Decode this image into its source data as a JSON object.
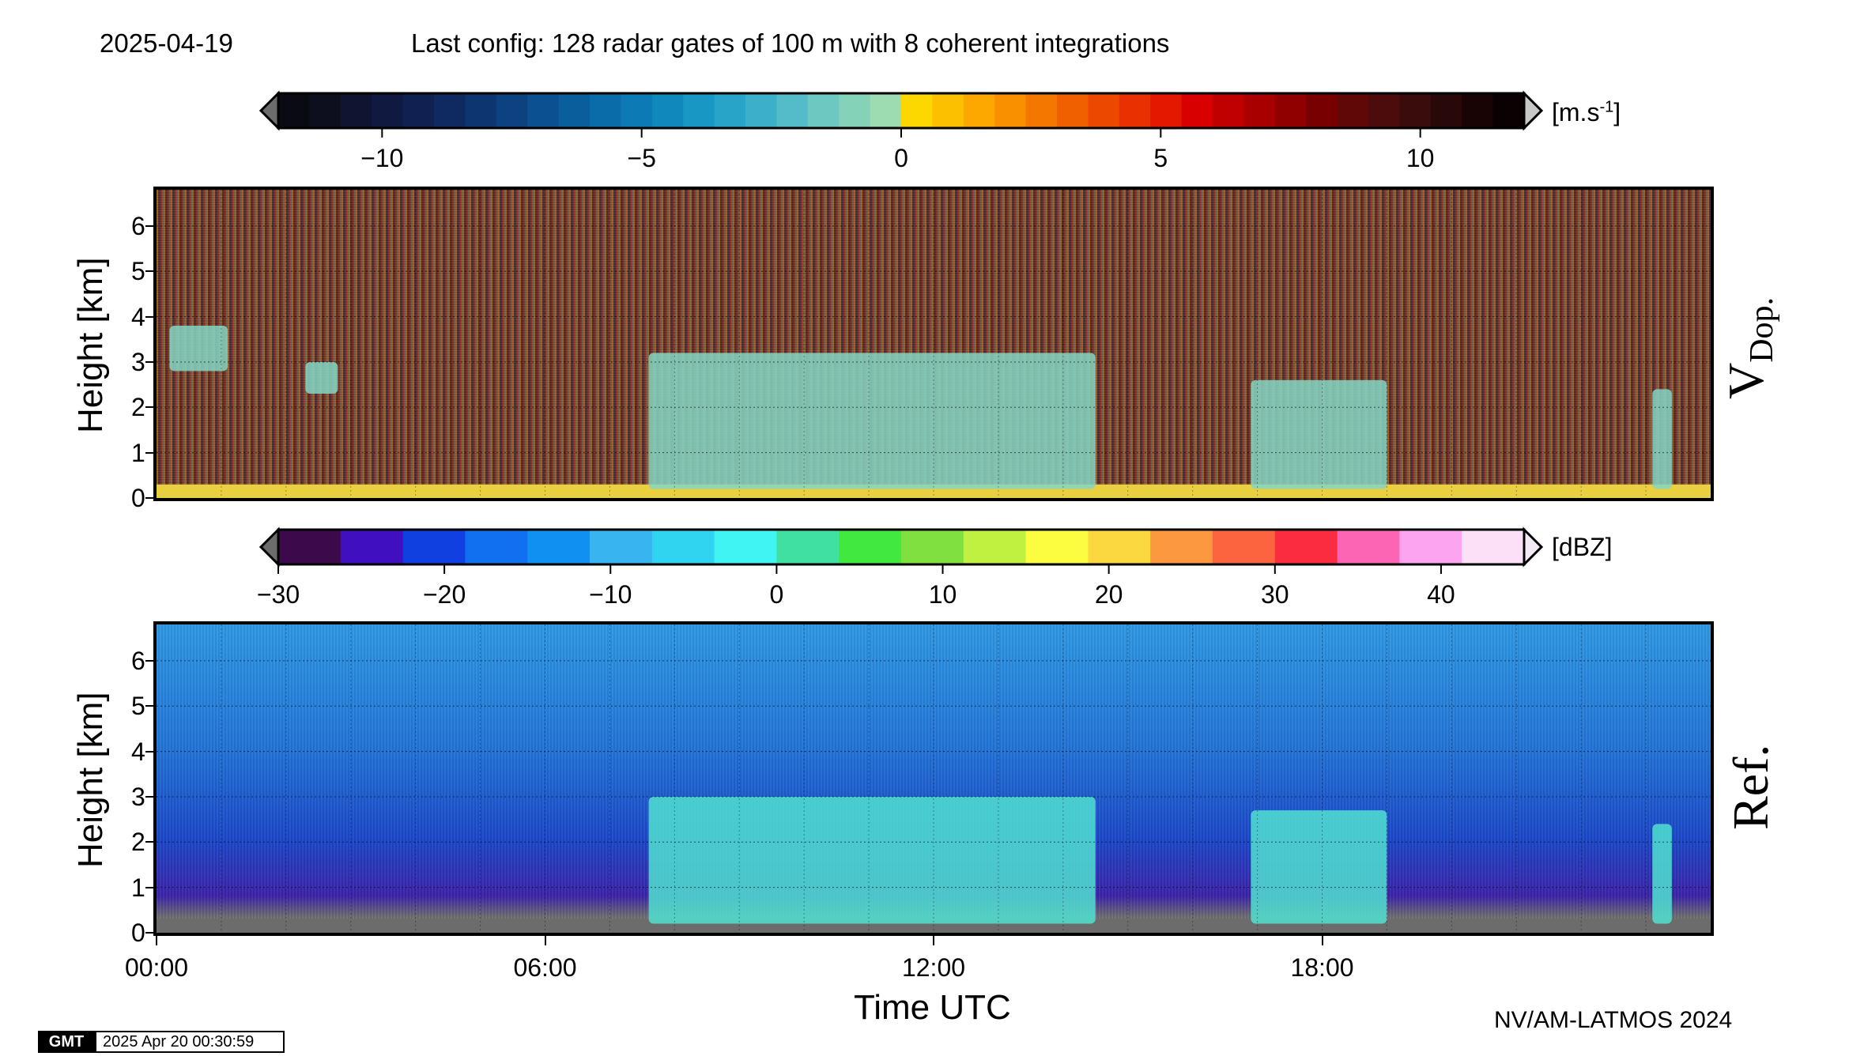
{
  "header": {
    "date": "2025-04-19",
    "config": "Last config: 128 radar gates of 100 m with 8 coherent integrations"
  },
  "colorbar_doppler": {
    "unit_prefix": "[m.s",
    "unit_exp": "-1",
    "unit_suffix": "]",
    "ticks": [
      "−10",
      "−5",
      "0",
      "5",
      "10"
    ],
    "tick_values": [
      -10,
      -5,
      0,
      5,
      10
    ],
    "range": [
      -12,
      12
    ],
    "colors": [
      "#0a0a12",
      "#0d0f1e",
      "#0f1430",
      "#101a40",
      "#102050",
      "#0f2a60",
      "#0d3570",
      "#0c4280",
      "#0b5090",
      "#0b5e9c",
      "#0a6ca8",
      "#0c7ab4",
      "#1088bc",
      "#1896c4",
      "#28a4c8",
      "#3cb0c8",
      "#54bcc8",
      "#6cc8c0",
      "#84d2b8",
      "#9cdcb0",
      "#fcd800",
      "#fcc000",
      "#fca800",
      "#f89000",
      "#f47800",
      "#f06000",
      "#ec4800",
      "#e83000",
      "#e41800",
      "#d80000",
      "#c00000",
      "#a80000",
      "#900000",
      "#780000",
      "#600808",
      "#4c0c0c",
      "#3a0c0c",
      "#280808",
      "#180404",
      "#0a0202"
    ],
    "over_color": "#c8c8c8",
    "under_color": "#6c6c6c"
  },
  "colorbar_reflectivity": {
    "unit": "[dBZ]",
    "ticks": [
      "−30",
      "−20",
      "−10",
      "0",
      "10",
      "20",
      "30",
      "40"
    ],
    "tick_values": [
      -30,
      -20,
      -10,
      0,
      10,
      20,
      30,
      40
    ],
    "range": [
      -30,
      45
    ],
    "colors": [
      "#3c0a4a",
      "#4010c0",
      "#1040e0",
      "#1070f0",
      "#1090f0",
      "#38b4f0",
      "#30d4f0",
      "#40f4f4",
      "#40e0a0",
      "#40e840",
      "#80e040",
      "#c0f040",
      "#fcfc40",
      "#fcd840",
      "#fc9840",
      "#fc6440",
      "#fc2c40",
      "#fc64b4",
      "#fca4f0",
      "#fce0f8"
    ],
    "over_color": "#f4e8f4",
    "under_color": "#6c6c6c"
  },
  "panel_doppler": {
    "ylabel": "Height [km]",
    "side_label_main": "V",
    "side_label_sub": "Dop.",
    "yticks": [
      "0",
      "1",
      "2",
      "3",
      "4",
      "5",
      "6"
    ]
  },
  "panel_reflectivity": {
    "ylabel": "Height [km]",
    "side_label": "Ref.",
    "yticks": [
      "0",
      "1",
      "2",
      "3",
      "4",
      "5",
      "6"
    ]
  },
  "xaxis": {
    "label": "Time UTC",
    "ticks": [
      "00:00",
      "06:00",
      "12:00",
      "18:00"
    ]
  },
  "footer": {
    "credit": "NV/AM-LATMOS 2024",
    "gmt_logo": "GMT",
    "timestamp": "2025 Apr 20 00:30:59"
  },
  "chart_data": [
    {
      "type": "heatmap",
      "name": "Doppler velocity",
      "x_range_hours": [
        0,
        24
      ],
      "y_range_km": [
        0,
        6.8
      ],
      "colorbar_range": [
        -12,
        12
      ],
      "features": [
        {
          "label": "cloud",
          "t_start": 7.6,
          "t_end": 14.5,
          "z_bottom": 0.2,
          "z_top": 3.2
        },
        {
          "label": "cloud",
          "t_start": 16.9,
          "t_end": 19.0,
          "z_bottom": 0.2,
          "z_top": 2.6
        },
        {
          "label": "cloud",
          "t_start": 23.1,
          "t_end": 23.4,
          "z_bottom": 0.2,
          "z_top": 2.4
        },
        {
          "label": "cloud",
          "t_start": 0.2,
          "t_end": 1.1,
          "z_bottom": 2.8,
          "z_top": 3.8
        },
        {
          "label": "cloud",
          "t_start": 2.3,
          "t_end": 2.8,
          "z_bottom": 2.3,
          "z_top": 3.0
        }
      ]
    },
    {
      "type": "heatmap",
      "name": "Reflectivity",
      "x_range_hours": [
        0,
        24
      ],
      "y_range_km": [
        0,
        6.8
      ],
      "colorbar_range": [
        -30,
        45
      ],
      "features": [
        {
          "label": "cloud",
          "t_start": 7.6,
          "t_end": 14.5,
          "z_bottom": 0.2,
          "z_top": 3.0
        },
        {
          "label": "cloud",
          "t_start": 16.9,
          "t_end": 19.0,
          "z_bottom": 0.2,
          "z_top": 2.7
        },
        {
          "label": "cloud",
          "t_start": 23.1,
          "t_end": 23.4,
          "z_bottom": 0.2,
          "z_top": 2.4
        }
      ]
    }
  ]
}
